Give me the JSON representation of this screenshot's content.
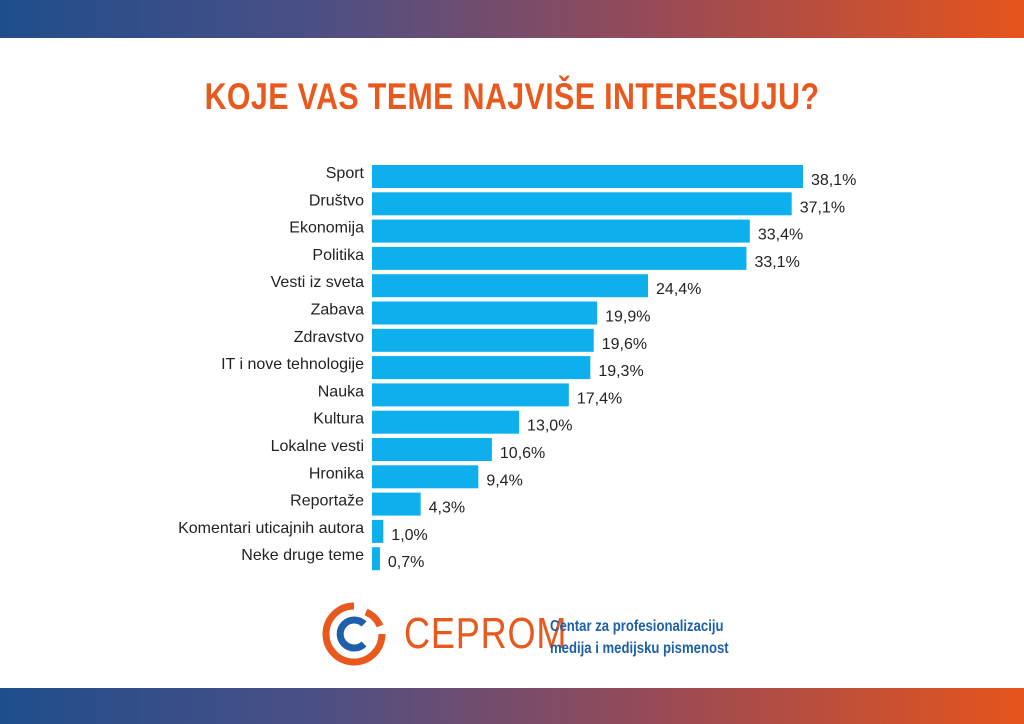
{
  "chart_data": {
    "type": "bar",
    "orientation": "horizontal",
    "title": "KOJE VAS TEME NAJVIŠE INTERESUJU?",
    "categories": [
      "Sport",
      "Društvo",
      "Ekonomija",
      "Politika",
      "Vesti iz sveta",
      "Zabava",
      "Zdravstvo",
      "IT i nove tehnologije",
      "Nauka",
      "Kultura",
      "Lokalne vesti",
      "Hronika",
      "Reportaže",
      "Komentari uticajnih autora",
      "Neke druge teme"
    ],
    "values": [
      38.1,
      37.1,
      33.4,
      33.1,
      24.4,
      19.9,
      19.6,
      19.3,
      17.4,
      13.0,
      10.6,
      9.4,
      4.3,
      1.0,
      0.7
    ],
    "value_labels": [
      "38,1%",
      "37,1%",
      "33,4%",
      "33,1%",
      "24,4%",
      "19,9%",
      "19,6%",
      "19,3%",
      "17,4%",
      "13,0%",
      "10,6%",
      "9,4%",
      "4,3%",
      "1,0%",
      "0,7%"
    ],
    "xlabel": "",
    "ylabel": "",
    "xlim": [
      0,
      38.1
    ],
    "grid": false,
    "legend": "none",
    "bar_color": "#0db0ec",
    "title_color": "#e9591e"
  },
  "logo": {
    "name": "CEPROM",
    "tagline_line1": "Centar za profesionalizaciju",
    "tagline_line2": "medija i medijsku pismenost",
    "brand_orange": "#e9591e",
    "brand_blue": "#1d5fa8"
  }
}
